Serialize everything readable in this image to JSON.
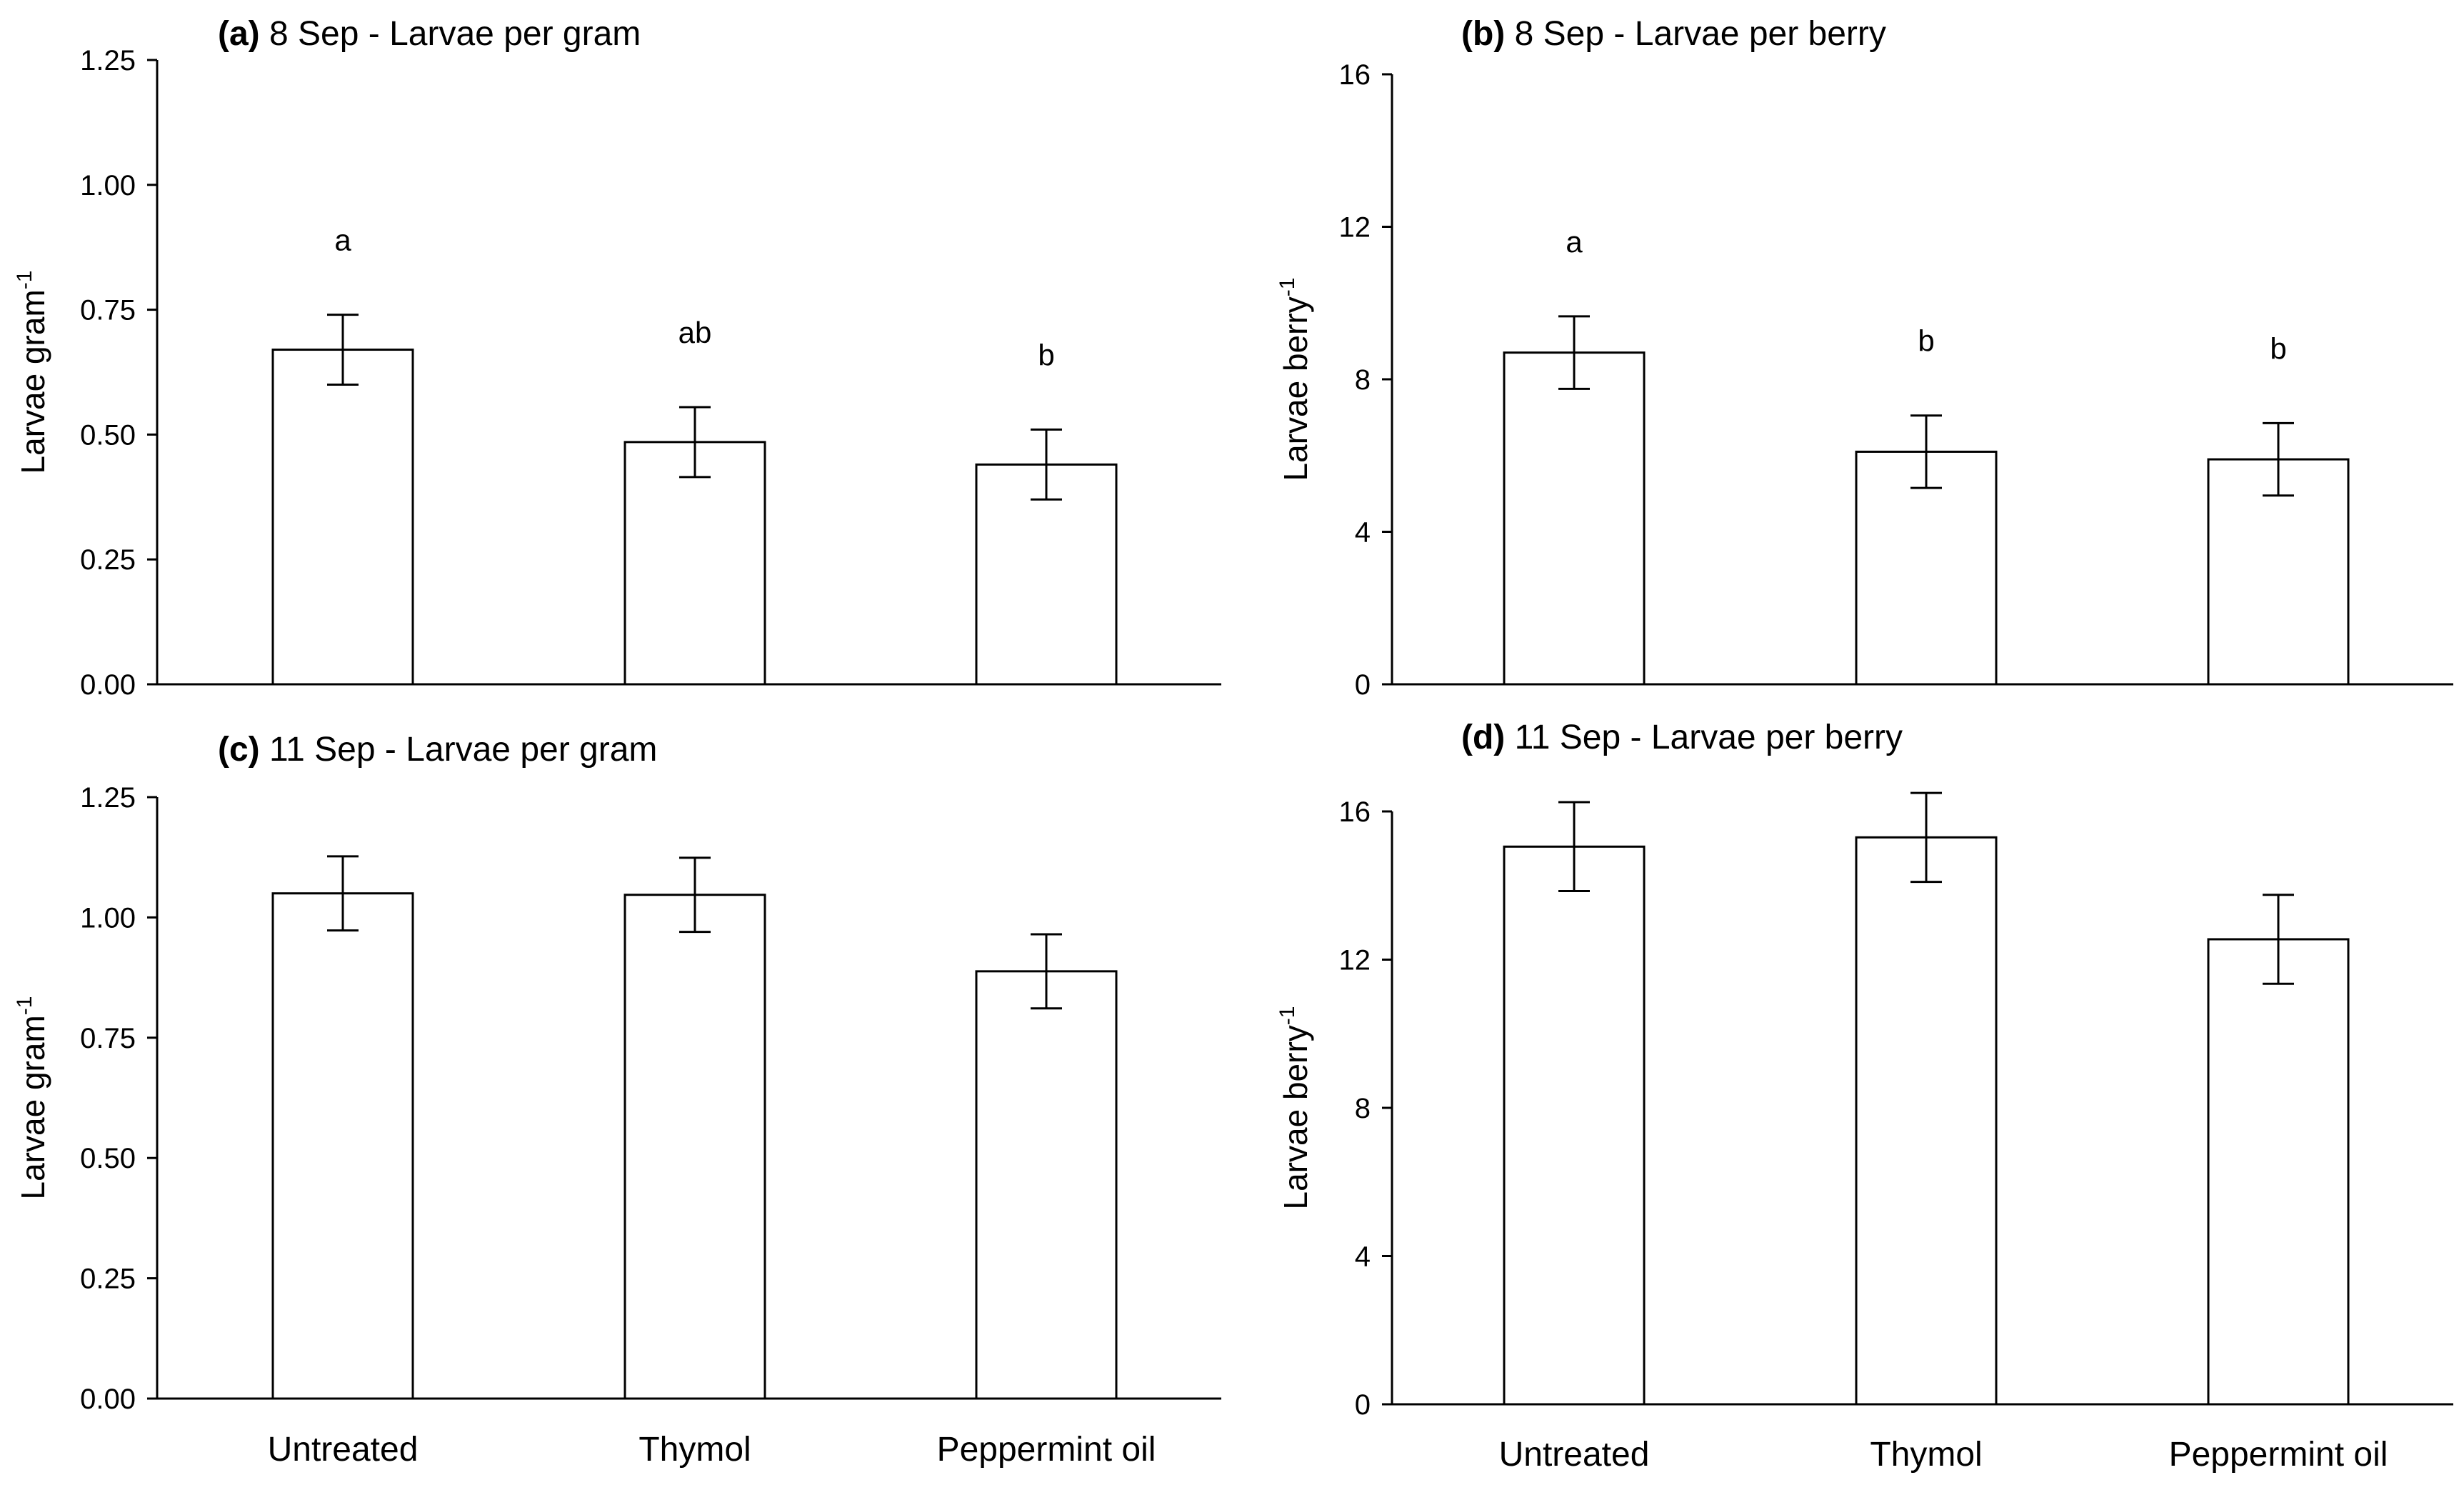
{
  "chart_data": [
    {
      "type": "bar",
      "panel": "(a)",
      "title": "8 Sep - Larvae per gram",
      "ylabel": "Larvae gram",
      "ylabel_sup": "-1",
      "categories": [
        "Untreated",
        "Thymol",
        "Peppermint oil"
      ],
      "values": [
        0.67,
        0.485,
        0.44
      ],
      "errors": [
        0.07,
        0.07,
        0.07
      ],
      "letters": [
        "a",
        "ab",
        "b"
      ],
      "ylim": [
        0,
        1.25
      ],
      "yticks": [
        "0.00",
        "0.25",
        "0.50",
        "0.75",
        "1.00",
        "1.25"
      ],
      "show_xlabels": false
    },
    {
      "type": "bar",
      "panel": "(b)",
      "title": "8 Sep - Larvae per berry",
      "ylabel": "Larvae berry",
      "ylabel_sup": "-1",
      "categories": [
        "Untreated",
        "Thymol",
        "Peppermint oil"
      ],
      "values": [
        8.7,
        6.1,
        5.9
      ],
      "errors": [
        0.95,
        0.95,
        0.95
      ],
      "letters": [
        "a",
        "b",
        "b"
      ],
      "ylim": [
        0,
        16
      ],
      "yticks": [
        "0",
        "4",
        "8",
        "12",
        "16"
      ],
      "show_xlabels": false
    },
    {
      "type": "bar",
      "panel": "(c)",
      "title": "11 Sep - Larvae per gram",
      "ylabel": "Larvae gram",
      "ylabel_sup": "-1",
      "categories": [
        "Untreated",
        "Thymol",
        "Peppermint oil"
      ],
      "values": [
        1.05,
        1.047,
        0.888
      ],
      "errors": [
        0.077,
        0.077,
        0.077
      ],
      "letters": [
        "",
        "",
        ""
      ],
      "ylim": [
        0,
        1.25
      ],
      "yticks": [
        "0.00",
        "0.25",
        "0.50",
        "0.75",
        "1.00",
        "1.25"
      ],
      "show_xlabels": true
    },
    {
      "type": "bar",
      "panel": "(d)",
      "title": "11 Sep - Larvae per berry",
      "ylabel": "Larvae berry",
      "ylabel_sup": "-1",
      "categories": [
        "Untreated",
        "Thymol",
        "Peppermint oil"
      ],
      "values": [
        15.05,
        15.3,
        12.55
      ],
      "errors": [
        1.2,
        1.2,
        1.2
      ],
      "letters": [
        "",
        "",
        ""
      ],
      "ylim": [
        0,
        16
      ],
      "yticks": [
        "0",
        "4",
        "8",
        "12",
        "16"
      ],
      "show_xlabels": true
    }
  ]
}
